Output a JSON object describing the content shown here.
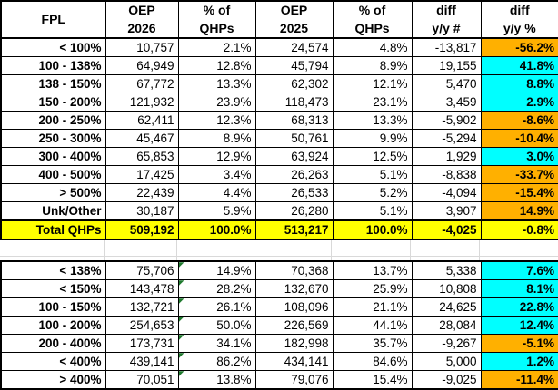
{
  "colors": {
    "orange": "#FFB000",
    "cyan": "#00FFFF",
    "yellow": "#FFFF00",
    "triangle_green": "#1F7A2E",
    "gridline": "#D9D9D9",
    "border": "#000000"
  },
  "chart_data": {
    "type": "table",
    "columns": [
      "FPL",
      "OEP 2026",
      "% of QHPs",
      "OEP 2025",
      "% of QHPs",
      "diff y/y #",
      "diff y/y %"
    ],
    "header_lines": [
      [
        "FPL",
        ""
      ],
      [
        "OEP",
        "2026"
      ],
      [
        "% of",
        "QHPs"
      ],
      [
        "OEP",
        "2025"
      ],
      [
        "% of",
        "QHPs"
      ],
      [
        "diff",
        "y/y #"
      ],
      [
        "diff",
        "y/y %"
      ]
    ],
    "section1": {
      "rows": [
        {
          "fpl": "< 100%",
          "oep_2026": "10,757",
          "pct_2026": "2.1%",
          "oep_2025": "24,574",
          "pct_2025": "4.8%",
          "diff_num": "-13,817",
          "diff_pct": "-56.2%",
          "diff_color": "orange"
        },
        {
          "fpl": "100 - 138%",
          "oep_2026": "64,949",
          "pct_2026": "12.8%",
          "oep_2025": "45,794",
          "pct_2025": "8.9%",
          "diff_num": "19,155",
          "diff_pct": "41.8%",
          "diff_color": "cyan"
        },
        {
          "fpl": "138 - 150%",
          "oep_2026": "67,772",
          "pct_2026": "13.3%",
          "oep_2025": "62,302",
          "pct_2025": "12.1%",
          "diff_num": "5,470",
          "diff_pct": "8.8%",
          "diff_color": "cyan"
        },
        {
          "fpl": "150 - 200%",
          "oep_2026": "121,932",
          "pct_2026": "23.9%",
          "oep_2025": "118,473",
          "pct_2025": "23.1%",
          "diff_num": "3,459",
          "diff_pct": "2.9%",
          "diff_color": "cyan"
        },
        {
          "fpl": "200 - 250%",
          "oep_2026": "62,411",
          "pct_2026": "12.3%",
          "oep_2025": "68,313",
          "pct_2025": "13.3%",
          "diff_num": "-5,902",
          "diff_pct": "-8.6%",
          "diff_color": "orange"
        },
        {
          "fpl": "250 - 300%",
          "oep_2026": "45,467",
          "pct_2026": "8.9%",
          "oep_2025": "50,761",
          "pct_2025": "9.9%",
          "diff_num": "-5,294",
          "diff_pct": "-10.4%",
          "diff_color": "orange"
        },
        {
          "fpl": "300 - 400%",
          "oep_2026": "65,853",
          "pct_2026": "12.9%",
          "oep_2025": "63,924",
          "pct_2025": "12.5%",
          "diff_num": "1,929",
          "diff_pct": "3.0%",
          "diff_color": "cyan"
        },
        {
          "fpl": "400 - 500%",
          "oep_2026": "17,425",
          "pct_2026": "3.4%",
          "oep_2025": "26,263",
          "pct_2025": "5.1%",
          "diff_num": "-8,838",
          "diff_pct": "-33.7%",
          "diff_color": "orange"
        },
        {
          "fpl": "> 500%",
          "oep_2026": "22,439",
          "pct_2026": "4.4%",
          "oep_2025": "26,533",
          "pct_2025": "5.2%",
          "diff_num": "-4,094",
          "diff_pct": "-15.4%",
          "diff_color": "orange"
        },
        {
          "fpl": "Unk/Other",
          "oep_2026": "30,187",
          "pct_2026": "5.9%",
          "oep_2025": "26,280",
          "pct_2025": "5.1%",
          "diff_num": "3,907",
          "diff_pct": "14.9%",
          "diff_color": "orange"
        },
        {
          "fpl": "Total QHPs",
          "oep_2026": "509,192",
          "pct_2026": "100.0%",
          "oep_2025": "513,217",
          "pct_2025": "100.0%",
          "diff_num": "-4,025",
          "diff_pct": "-0.8%",
          "is_total": true
        }
      ]
    },
    "section2": {
      "rows": [
        {
          "fpl": "< 138%",
          "oep_2026": "75,706",
          "pct_2026": "14.9%",
          "oep_2025": "70,368",
          "pct_2025": "13.7%",
          "diff_num": "5,338",
          "diff_pct": "7.6%",
          "diff_color": "cyan",
          "triangle": true
        },
        {
          "fpl": "< 150%",
          "oep_2026": "143,478",
          "pct_2026": "28.2%",
          "oep_2025": "132,670",
          "pct_2025": "25.9%",
          "diff_num": "10,808",
          "diff_pct": "8.1%",
          "diff_color": "cyan",
          "triangle": true
        },
        {
          "fpl": "100 - 150%",
          "oep_2026": "132,721",
          "pct_2026": "26.1%",
          "oep_2025": "108,096",
          "pct_2025": "21.1%",
          "diff_num": "24,625",
          "diff_pct": "22.8%",
          "diff_color": "cyan",
          "triangle": true
        },
        {
          "fpl": "100 - 200%",
          "oep_2026": "254,653",
          "pct_2026": "50.0%",
          "oep_2025": "226,569",
          "pct_2025": "44.1%",
          "diff_num": "28,084",
          "diff_pct": "12.4%",
          "diff_color": "cyan",
          "triangle": true
        },
        {
          "fpl": "200 - 400%",
          "oep_2026": "173,731",
          "pct_2026": "34.1%",
          "oep_2025": "182,998",
          "pct_2025": "35.7%",
          "diff_num": "-9,267",
          "diff_pct": "-5.1%",
          "diff_color": "orange",
          "triangle": true
        },
        {
          "fpl": "< 400%",
          "oep_2026": "439,141",
          "pct_2026": "86.2%",
          "oep_2025": "434,141",
          "pct_2025": "84.6%",
          "diff_num": "5,000",
          "diff_pct": "1.2%",
          "diff_color": "cyan",
          "triangle": true
        },
        {
          "fpl": "> 400%",
          "oep_2026": "70,051",
          "pct_2026": "13.8%",
          "oep_2025": "79,076",
          "pct_2025": "15.4%",
          "diff_num": "-9,025",
          "diff_pct": "-11.4%",
          "diff_color": "orange",
          "triangle": true
        }
      ]
    }
  }
}
